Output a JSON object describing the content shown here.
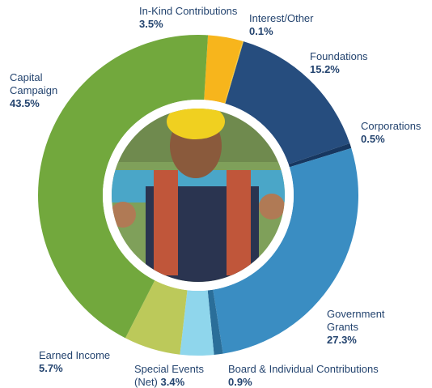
{
  "chart_data": {
    "type": "donut",
    "categories": [
      "In-Kind Contributions",
      "Interest/Other",
      "Foundations",
      "Corporations",
      "Government Grants",
      "Board & Individual Contributions",
      "Special Events (Net)",
      "Earned Income",
      "Capital Campaign"
    ],
    "values": [
      3.5,
      0.1,
      15.2,
      0.5,
      27.3,
      0.9,
      3.4,
      5.7,
      43.5
    ],
    "value_labels": [
      "3.5%",
      "0.1%",
      "15.2%",
      "0.5%",
      "27.3%",
      "0.9%",
      "3.4%",
      "5.7%",
      "43.5%"
    ],
    "colors": [
      "#f7b51c",
      "#f3c83a",
      "#264d7e",
      "#173760",
      "#3a8dc2",
      "#2a6e99",
      "#8fd6ec",
      "#bcc95a",
      "#72a83d"
    ]
  }
}
